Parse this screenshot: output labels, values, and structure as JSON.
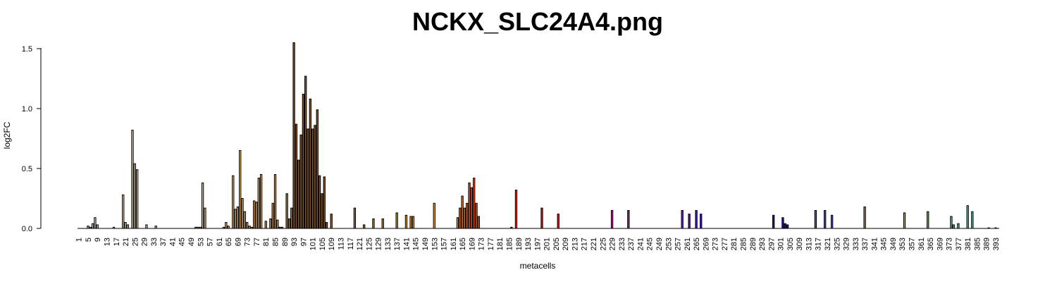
{
  "chart_data": {
    "type": "bar",
    "title": "NCKX_SLC24A4.png",
    "xlabel": "metacells",
    "ylabel": "log2FC",
    "ylim": [
      0,
      1.6
    ],
    "yticks": [
      "0.0",
      "0.5",
      "1.0",
      "1.5"
    ],
    "x_min": 1,
    "x_max": 394,
    "xtick_start": 1,
    "xtick_step": 4,
    "xtick_end": 393,
    "grid": false,
    "legend": "none",
    "bars": [
      {
        "x": 5,
        "value": 0.02,
        "color": "#c8c8c8"
      },
      {
        "x": 6,
        "value": 0.01,
        "color": "#c8c8c8"
      },
      {
        "x": 7,
        "value": 0.04,
        "color": "#c8c8c8"
      },
      {
        "x": 8,
        "value": 0.09,
        "color": "#c8c8c8"
      },
      {
        "x": 9,
        "value": 0.03,
        "color": "#c8c8c8"
      },
      {
        "x": 16,
        "value": 0.01,
        "color": "#cfc3ae"
      },
      {
        "x": 20,
        "value": 0.28,
        "color": "#cfc3ae"
      },
      {
        "x": 21,
        "value": 0.05,
        "color": "#cfc3ae"
      },
      {
        "x": 22,
        "value": 0.03,
        "color": "#cfc3ae"
      },
      {
        "x": 24,
        "value": 0.82,
        "color": "#d8c6a8"
      },
      {
        "x": 25,
        "value": 0.54,
        "color": "#d8c6a8"
      },
      {
        "x": 26,
        "value": 0.49,
        "color": "#d8c6a8"
      },
      {
        "x": 30,
        "value": 0.03,
        "color": "#d8c6a8"
      },
      {
        "x": 34,
        "value": 0.02,
        "color": "#d8c6a8"
      },
      {
        "x": 51,
        "value": 0.01,
        "color": "#e0bd90"
      },
      {
        "x": 52,
        "value": 0.01,
        "color": "#e0bd90"
      },
      {
        "x": 53,
        "value": 0.01,
        "color": "#e0bd90"
      },
      {
        "x": 54,
        "value": 0.38,
        "color": "#e0bd90"
      },
      {
        "x": 55,
        "value": 0.17,
        "color": "#e0bd90"
      },
      {
        "x": 63,
        "value": 0.01,
        "color": "#deb07a"
      },
      {
        "x": 64,
        "value": 0.05,
        "color": "#deb07a"
      },
      {
        "x": 65,
        "value": 0.02,
        "color": "#deb07a"
      },
      {
        "x": 67,
        "value": 0.44,
        "color": "#deb07a"
      },
      {
        "x": 68,
        "value": 0.16,
        "color": "#deb07a"
      },
      {
        "x": 69,
        "value": 0.18,
        "color": "#deb07a"
      },
      {
        "x": 70,
        "value": 0.65,
        "color": "#deb07a"
      },
      {
        "x": 71,
        "value": 0.25,
        "color": "#deb07a"
      },
      {
        "x": 72,
        "value": 0.14,
        "color": "#deb07a"
      },
      {
        "x": 73,
        "value": 0.05,
        "color": "#d9a56a"
      },
      {
        "x": 74,
        "value": 0.02,
        "color": "#d9a56a"
      },
      {
        "x": 75,
        "value": 0.01,
        "color": "#d9a56a"
      },
      {
        "x": 76,
        "value": 0.23,
        "color": "#d9a56a"
      },
      {
        "x": 77,
        "value": 0.22,
        "color": "#d9a56a"
      },
      {
        "x": 78,
        "value": 0.42,
        "color": "#d9a56a"
      },
      {
        "x": 79,
        "value": 0.45,
        "color": "#d9a56a"
      },
      {
        "x": 81,
        "value": 0.06,
        "color": "#c9965a"
      },
      {
        "x": 83,
        "value": 0.08,
        "color": "#c9965a"
      },
      {
        "x": 84,
        "value": 0.21,
        "color": "#c9965a"
      },
      {
        "x": 85,
        "value": 0.45,
        "color": "#c9965a"
      },
      {
        "x": 86,
        "value": 0.07,
        "color": "#c9965a"
      },
      {
        "x": 87,
        "value": 0.01,
        "color": "#a87a48"
      },
      {
        "x": 88,
        "value": 0.01,
        "color": "#a87a48"
      },
      {
        "x": 90,
        "value": 0.29,
        "color": "#a87a48"
      },
      {
        "x": 91,
        "value": 0.08,
        "color": "#a87a48"
      },
      {
        "x": 92,
        "value": 0.17,
        "color": "#a87a48"
      },
      {
        "x": 93,
        "value": 1.55,
        "color": "#8b5a2b"
      },
      {
        "x": 94,
        "value": 0.87,
        "color": "#8b5a2b"
      },
      {
        "x": 95,
        "value": 0.57,
        "color": "#8b5a2b"
      },
      {
        "x": 96,
        "value": 0.78,
        "color": "#8b5a2b"
      },
      {
        "x": 97,
        "value": 1.12,
        "color": "#8b5a2b"
      },
      {
        "x": 98,
        "value": 1.27,
        "color": "#8b5a2b"
      },
      {
        "x": 99,
        "value": 0.83,
        "color": "#8b5a2b"
      },
      {
        "x": 100,
        "value": 1.08,
        "color": "#8b5a2b"
      },
      {
        "x": 101,
        "value": 0.83,
        "color": "#8b5a2b"
      },
      {
        "x": 102,
        "value": 0.86,
        "color": "#8b5a2b"
      },
      {
        "x": 103,
        "value": 0.99,
        "color": "#8b5a2b"
      },
      {
        "x": 104,
        "value": 0.44,
        "color": "#8b5a2b"
      },
      {
        "x": 105,
        "value": 0.29,
        "color": "#8b5a2b"
      },
      {
        "x": 106,
        "value": 0.43,
        "color": "#8b5a2b"
      },
      {
        "x": 107,
        "value": 0.05,
        "color": "#8b5a2b"
      },
      {
        "x": 109,
        "value": 0.12,
        "color": "#9a6632"
      },
      {
        "x": 119,
        "value": 0.17,
        "color": "#a06a30"
      },
      {
        "x": 123,
        "value": 0.03,
        "color": "#a8702e"
      },
      {
        "x": 127,
        "value": 0.08,
        "color": "#b87c2a"
      },
      {
        "x": 131,
        "value": 0.08,
        "color": "#c08428"
      },
      {
        "x": 137,
        "value": 0.13,
        "color": "#d08c2c"
      },
      {
        "x": 141,
        "value": 0.11,
        "color": "#d8942e"
      },
      {
        "x": 143,
        "value": 0.1,
        "color": "#e09a30"
      },
      {
        "x": 144,
        "value": 0.1,
        "color": "#e09a30"
      },
      {
        "x": 153,
        "value": 0.21,
        "color": "#e8a030"
      },
      {
        "x": 163,
        "value": 0.09,
        "color": "#f08a3a"
      },
      {
        "x": 164,
        "value": 0.17,
        "color": "#f07a30"
      },
      {
        "x": 165,
        "value": 0.27,
        "color": "#f07a30"
      },
      {
        "x": 166,
        "value": 0.17,
        "color": "#f06e28"
      },
      {
        "x": 167,
        "value": 0.21,
        "color": "#f06e28"
      },
      {
        "x": 168,
        "value": 0.38,
        "color": "#ee6020"
      },
      {
        "x": 169,
        "value": 0.34,
        "color": "#ee6020"
      },
      {
        "x": 170,
        "value": 0.42,
        "color": "#ec5a1c"
      },
      {
        "x": 171,
        "value": 0.21,
        "color": "#ec5a1c"
      },
      {
        "x": 172,
        "value": 0.1,
        "color": "#ea5418"
      },
      {
        "x": 186,
        "value": 0.01,
        "color": "#d83020"
      },
      {
        "x": 188,
        "value": 0.32,
        "color": "#d82820"
      },
      {
        "x": 199,
        "value": 0.17,
        "color": "#cc2424"
      },
      {
        "x": 206,
        "value": 0.12,
        "color": "#cc2424"
      },
      {
        "x": 229,
        "value": 0.15,
        "color": "#b01c8c"
      },
      {
        "x": 236,
        "value": 0.15,
        "color": "#9c1c9c"
      },
      {
        "x": 259,
        "value": 0.15,
        "color": "#6a1cc8"
      },
      {
        "x": 262,
        "value": 0.12,
        "color": "#5a1cc8"
      },
      {
        "x": 265,
        "value": 0.15,
        "color": "#4c1ccc"
      },
      {
        "x": 267,
        "value": 0.12,
        "color": "#4c1ccc"
      },
      {
        "x": 298,
        "value": 0.11,
        "color": "#1a1aa8"
      },
      {
        "x": 302,
        "value": 0.09,
        "color": "#1a1aa8"
      },
      {
        "x": 303,
        "value": 0.04,
        "color": "#1a1aa8"
      },
      {
        "x": 304,
        "value": 0.03,
        "color": "#1a1aa8"
      },
      {
        "x": 316,
        "value": 0.15,
        "color": "#505ca0"
      },
      {
        "x": 320,
        "value": 0.15,
        "color": "#505ca0"
      },
      {
        "x": 323,
        "value": 0.11,
        "color": "#505ca0"
      },
      {
        "x": 337,
        "value": 0.18,
        "color": "#a08050"
      },
      {
        "x": 354,
        "value": 0.13,
        "color": "#b8a040"
      },
      {
        "x": 364,
        "value": 0.14,
        "color": "#78a068"
      },
      {
        "x": 374,
        "value": 0.1,
        "color": "#6cc08c"
      },
      {
        "x": 375,
        "value": 0.03,
        "color": "#6cc08c"
      },
      {
        "x": 377,
        "value": 0.04,
        "color": "#4cc0a0"
      },
      {
        "x": 381,
        "value": 0.19,
        "color": "#40c8a8"
      },
      {
        "x": 383,
        "value": 0.14,
        "color": "#40c8a8"
      },
      {
        "x": 390,
        "value": 0.005,
        "color": "#40c8a8"
      },
      {
        "x": 393,
        "value": 0.005,
        "color": "#40c8a8"
      }
    ]
  }
}
